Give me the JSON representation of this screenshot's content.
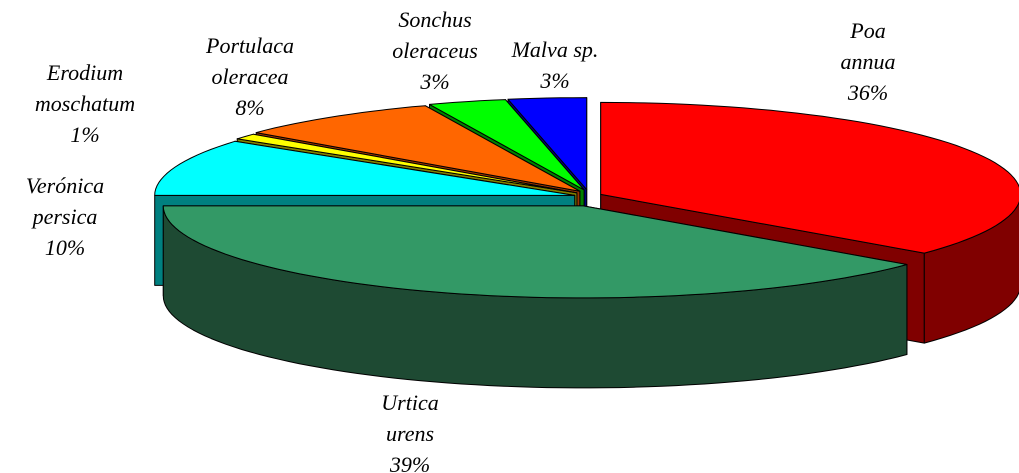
{
  "chart_data": {
    "type": "pie3d",
    "categories": [
      "Poa annua",
      "Urtica urens",
      "Verónica persica",
      "Erodium moschatum",
      "Portulaca oleracea",
      "Sonchus oleraceus",
      "Malva sp."
    ],
    "values": [
      36,
      39,
      10,
      1,
      8,
      3,
      3
    ],
    "value_labels": [
      "36%",
      "39%",
      "10%",
      "1%",
      "8%",
      "3%",
      "3%"
    ],
    "colors": [
      "#ff0000",
      "#339966",
      "#00ffff",
      "#ffff00",
      "#ff6600",
      "#00ff00",
      "#0000ff"
    ],
    "side_colors": [
      "#800000",
      "#1e4a33",
      "#008080",
      "#808000",
      "#993300",
      "#008000",
      "#000080"
    ]
  }
}
